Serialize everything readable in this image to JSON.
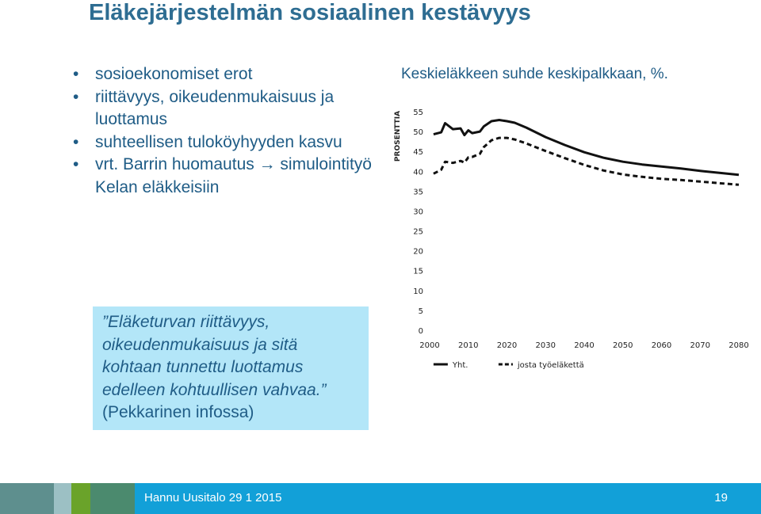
{
  "slide": {
    "title": "Eläkejärjestelmän sosiaalinen kestävyys",
    "bullets": [
      "sosioekonomiset erot",
      "riittävyys, oikeudenmukaisuus ja luottamus",
      "suhteellisen tuloköyhyyden kasvu",
      "vrt. Barrin huomautus → simulointityö Kelan eläkkeisiin"
    ],
    "bullet_glyph": "•",
    "quote": {
      "italic_text": "”Eläketurvan riittävyys, oikeudenmukaisuus ja sitä kohtaan tunnettu luottamus edelleen kohtuullisen vahvaa.”",
      "source": "(Pekkarinen infossa)",
      "background_color": "#b3e6f8"
    },
    "text_color": "#1f5c86",
    "title_color": "#2e6d92"
  },
  "footer": {
    "text": "Hannu Uusitalo 29 1 2015",
    "page": "19",
    "color": "#12a0d8"
  },
  "chart_data": {
    "type": "line",
    "title": "Keskieläkkeen suhde keskipalkkaan, %.",
    "ylabel": "PROSENTTIA",
    "xlabel": "",
    "ylim": [
      0,
      55
    ],
    "xlim": [
      2000,
      2080
    ],
    "xticks": [
      2000,
      2010,
      2020,
      2030,
      2040,
      2050,
      2060,
      2070,
      2080
    ],
    "yticks": [
      0,
      5,
      10,
      15,
      20,
      25,
      30,
      35,
      40,
      45,
      50,
      55
    ],
    "grid": false,
    "legend_position": "bottom",
    "series": [
      {
        "name": "Yht.",
        "style": "solid",
        "color": "#111111",
        "x": [
          2001,
          2003,
          2004,
          2006,
          2008,
          2009,
          2010,
          2011,
          2013,
          2014,
          2016,
          2018,
          2020,
          2022,
          2025,
          2030,
          2035,
          2040,
          2045,
          2050,
          2055,
          2060,
          2065,
          2070,
          2075,
          2080
        ],
        "y": [
          49.5,
          50,
          52.3,
          50.8,
          51,
          49.3,
          50.5,
          49.8,
          50.2,
          51.5,
          52.8,
          53.1,
          52.8,
          52.4,
          51.2,
          48.8,
          46.8,
          45,
          43.6,
          42.6,
          41.9,
          41.4,
          40.9,
          40.3,
          39.8,
          39.3
        ]
      },
      {
        "name": "josta työeläkettä",
        "style": "dashed",
        "color": "#111111",
        "x": [
          2001,
          2003,
          2004,
          2006,
          2008,
          2009,
          2010,
          2011,
          2013,
          2014,
          2016,
          2018,
          2020,
          2022,
          2025,
          2030,
          2035,
          2040,
          2045,
          2050,
          2055,
          2060,
          2065,
          2070,
          2075,
          2080
        ],
        "y": [
          39.6,
          40.6,
          42.6,
          42.3,
          42.8,
          42.4,
          43.7,
          43.8,
          44.6,
          46.3,
          48,
          48.6,
          48.6,
          48.2,
          47.2,
          45.3,
          43.5,
          41.8,
          40.4,
          39.4,
          38.8,
          38.3,
          38,
          37.6,
          37.2,
          36.8
        ]
      }
    ]
  }
}
